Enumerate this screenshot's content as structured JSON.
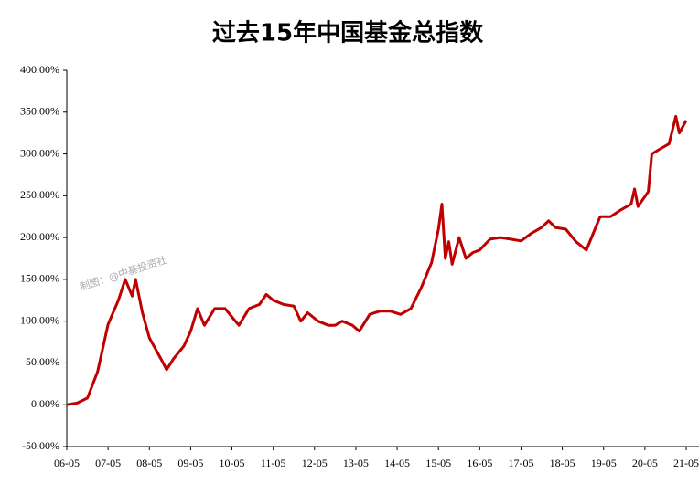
{
  "chart_data": {
    "type": "line",
    "title": "过去15年中国基金总指数",
    "watermark": "制图：@中基投资社",
    "x": [
      "06-05",
      "06-08",
      "06-11",
      "07-02",
      "07-05",
      "07-08",
      "07-10",
      "07-12",
      "08-01",
      "08-03",
      "08-05",
      "08-07",
      "08-09",
      "08-10",
      "08-12",
      "09-03",
      "09-05",
      "09-07",
      "09-09",
      "09-12",
      "10-03",
      "10-05",
      "10-07",
      "10-10",
      "11-01",
      "11-03",
      "11-05",
      "11-08",
      "11-11",
      "12-01",
      "12-03",
      "12-06",
      "12-09",
      "12-11",
      "13-01",
      "13-04",
      "13-06",
      "13-09",
      "13-12",
      "14-03",
      "14-06",
      "14-09",
      "14-12",
      "15-03",
      "15-05",
      "15-06",
      "15-07",
      "15-08",
      "15-09",
      "15-11",
      "16-01",
      "16-03",
      "16-05",
      "16-08",
      "16-11",
      "17-02",
      "17-05",
      "17-08",
      "17-11",
      "18-01",
      "18-03",
      "18-06",
      "18-09",
      "18-12",
      "19-02",
      "19-04",
      "19-07",
      "19-10",
      "20-01",
      "20-02",
      "20-03",
      "20-06",
      "20-07",
      "20-09",
      "20-12",
      "21-02",
      "21-03",
      "21-05"
    ],
    "values": [
      0,
      2,
      8,
      40,
      96,
      125,
      150,
      130,
      150,
      110,
      80,
      65,
      50,
      42,
      55,
      70,
      88,
      115,
      95,
      115,
      115,
      105,
      95,
      115,
      120,
      132,
      125,
      120,
      118,
      100,
      110,
      100,
      95,
      95,
      100,
      95,
      88,
      108,
      112,
      112,
      108,
      115,
      140,
      170,
      210,
      240,
      175,
      195,
      168,
      200,
      175,
      182,
      185,
      198,
      200,
      198,
      196,
      205,
      212,
      220,
      212,
      210,
      195,
      185,
      205,
      225,
      225,
      233,
      240,
      258,
      237,
      255,
      300,
      305,
      312,
      345,
      325,
      340
    ],
    "color": "#c00000",
    "xlim": [
      "06-05",
      "21-05"
    ],
    "xticks": [
      "06-05",
      "07-05",
      "08-05",
      "09-05",
      "10-05",
      "11-05",
      "12-05",
      "13-05",
      "14-05",
      "15-05",
      "16-05",
      "17-05",
      "18-05",
      "19-05",
      "20-05",
      "21-05"
    ],
    "ylim": [
      -50,
      400
    ],
    "yticks": [
      {
        "value": 400,
        "label": "400.00%"
      },
      {
        "value": 350,
        "label": "350.00%"
      },
      {
        "value": 300,
        "label": "300.00%"
      },
      {
        "value": 250,
        "label": "250.00%"
      },
      {
        "value": 200,
        "label": "200.00%"
      },
      {
        "value": 150,
        "label": "150.00%"
      },
      {
        "value": 100,
        "label": "100.00%"
      },
      {
        "value": 50,
        "label": "50.00%"
      },
      {
        "value": 0,
        "label": "0.00%"
      },
      {
        "value": -50,
        "label": "-50.00%"
      }
    ]
  }
}
